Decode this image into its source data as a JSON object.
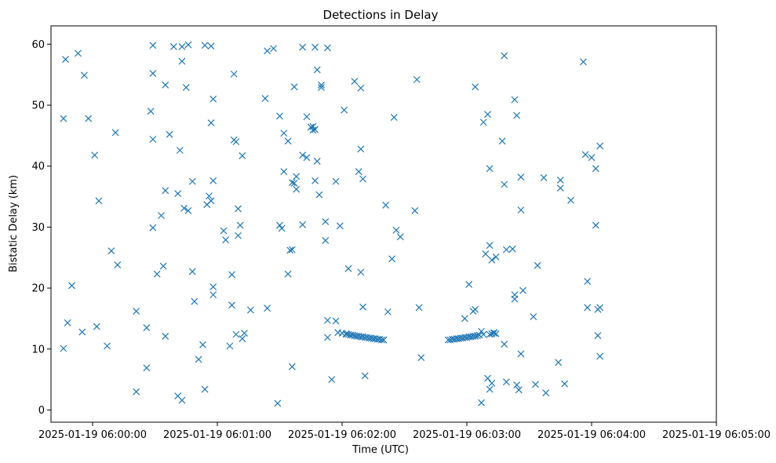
{
  "chart_data": {
    "type": "scatter",
    "title": "Detections in Delay",
    "xlabel": "Time (UTC)",
    "ylabel": "Bistatic Delay (km)",
    "marker": "x",
    "color": "#1f77b4",
    "grid": false,
    "x_is_time": true,
    "xlim": [
      "2025-01-19 05:59:40",
      "2025-01-19 06:05:00"
    ],
    "ylim": [
      -2,
      63
    ],
    "x_ticks": [
      "2025-01-19 06:00:00",
      "2025-01-19 06:01:00",
      "2025-01-19 06:02:00",
      "2025-01-19 06:03:00",
      "2025-01-19 06:04:00",
      "2025-01-19 06:05:00"
    ],
    "y_ticks": [
      0,
      10,
      20,
      30,
      40,
      50,
      60
    ],
    "series": [
      {
        "points": [
          [
            "2025-01-19 05:59:46",
            10.1
          ],
          [
            "2025-01-19 05:59:46",
            47.8
          ],
          [
            "2025-01-19 05:59:47",
            57.5
          ],
          [
            "2025-01-19 05:59:48",
            14.3
          ],
          [
            "2025-01-19 05:59:50",
            20.4
          ],
          [
            "2025-01-19 05:59:53",
            58.5
          ],
          [
            "2025-01-19 05:59:55",
            12.8
          ],
          [
            "2025-01-19 05:59:56",
            54.9
          ],
          [
            "2025-01-19 05:59:58",
            47.8
          ],
          [
            "2025-01-19 06:00:01",
            41.8
          ],
          [
            "2025-01-19 06:00:02",
            13.7
          ],
          [
            "2025-01-19 06:00:03",
            34.3
          ],
          [
            "2025-01-19 06:00:07",
            10.5
          ],
          [
            "2025-01-19 06:00:09",
            26.1
          ],
          [
            "2025-01-19 06:00:11",
            45.5
          ],
          [
            "2025-01-19 06:00:12",
            23.8
          ],
          [
            "2025-01-19 06:00:21",
            16.2
          ],
          [
            "2025-01-19 06:00:21",
            3.0
          ],
          [
            "2025-01-19 06:00:26",
            6.9
          ],
          [
            "2025-01-19 06:00:26",
            13.5
          ],
          [
            "2025-01-19 06:00:28",
            49.0
          ],
          [
            "2025-01-19 06:00:29",
            55.2
          ],
          [
            "2025-01-19 06:00:29",
            59.8
          ],
          [
            "2025-01-19 06:00:29",
            44.4
          ],
          [
            "2025-01-19 06:00:29",
            29.9
          ],
          [
            "2025-01-19 06:00:31",
            22.3
          ],
          [
            "2025-01-19 06:00:33",
            31.9
          ],
          [
            "2025-01-19 06:00:34",
            23.6
          ],
          [
            "2025-01-19 06:00:35",
            12.1
          ],
          [
            "2025-01-19 06:00:35",
            36.0
          ],
          [
            "2025-01-19 06:00:35",
            53.3
          ],
          [
            "2025-01-19 06:00:37",
            45.2
          ],
          [
            "2025-01-19 06:00:39",
            59.6
          ],
          [
            "2025-01-19 06:00:41",
            35.5
          ],
          [
            "2025-01-19 06:00:41",
            2.3
          ],
          [
            "2025-01-19 06:00:42",
            42.6
          ],
          [
            "2025-01-19 06:00:43",
            57.2
          ],
          [
            "2025-01-19 06:00:43",
            59.6
          ],
          [
            "2025-01-19 06:00:43",
            1.6
          ],
          [
            "2025-01-19 06:00:44",
            33.1
          ],
          [
            "2025-01-19 06:00:45",
            52.9
          ],
          [
            "2025-01-19 06:00:46",
            59.9
          ],
          [
            "2025-01-19 06:00:46",
            32.7
          ],
          [
            "2025-01-19 06:00:48",
            37.5
          ],
          [
            "2025-01-19 06:00:48",
            22.7
          ],
          [
            "2025-01-19 06:00:49",
            17.8
          ],
          [
            "2025-01-19 06:00:51",
            8.3
          ],
          [
            "2025-01-19 06:00:53",
            10.7
          ],
          [
            "2025-01-19 06:00:54",
            59.8
          ],
          [
            "2025-01-19 06:00:54",
            3.4
          ],
          [
            "2025-01-19 06:00:55",
            33.7
          ],
          [
            "2025-01-19 06:00:56",
            35.1
          ],
          [
            "2025-01-19 06:00:57",
            59.7
          ],
          [
            "2025-01-19 06:00:57",
            34.3
          ],
          [
            "2025-01-19 06:00:57",
            47.1
          ],
          [
            "2025-01-19 06:00:58",
            51.0
          ],
          [
            "2025-01-19 06:00:58",
            37.6
          ],
          [
            "2025-01-19 06:00:58",
            20.2
          ],
          [
            "2025-01-19 06:00:58",
            18.9
          ],
          [
            "2025-01-19 06:01:03",
            29.4
          ],
          [
            "2025-01-19 06:01:04",
            27.9
          ],
          [
            "2025-01-19 06:01:06",
            10.5
          ],
          [
            "2025-01-19 06:01:07",
            22.2
          ],
          [
            "2025-01-19 06:01:07",
            17.2
          ],
          [
            "2025-01-19 06:01:08",
            44.3
          ],
          [
            "2025-01-19 06:01:08",
            55.1
          ],
          [
            "2025-01-19 06:01:09",
            12.4
          ],
          [
            "2025-01-19 06:01:09",
            44.0
          ],
          [
            "2025-01-19 06:01:10",
            33.0
          ],
          [
            "2025-01-19 06:01:10",
            28.6
          ],
          [
            "2025-01-19 06:01:11",
            30.3
          ],
          [
            "2025-01-19 06:01:12",
            11.7
          ],
          [
            "2025-01-19 06:01:12",
            41.7
          ],
          [
            "2025-01-19 06:01:13",
            12.6
          ],
          [
            "2025-01-19 06:01:16",
            16.4
          ],
          [
            "2025-01-19 06:01:23",
            51.1
          ],
          [
            "2025-01-19 06:01:24",
            16.7
          ],
          [
            "2025-01-19 06:01:24",
            58.9
          ],
          [
            "2025-01-19 06:01:27",
            59.3
          ],
          [
            "2025-01-19 06:01:29",
            1.1
          ],
          [
            "2025-01-19 06:01:30",
            48.2
          ],
          [
            "2025-01-19 06:01:30",
            30.3
          ],
          [
            "2025-01-19 06:01:31",
            29.8
          ],
          [
            "2025-01-19 06:01:32",
            39.1
          ],
          [
            "2025-01-19 06:01:32",
            45.4
          ],
          [
            "2025-01-19 06:01:34",
            22.3
          ],
          [
            "2025-01-19 06:01:34",
            44.1
          ],
          [
            "2025-01-19 06:01:35",
            26.2
          ],
          [
            "2025-01-19 06:01:36",
            26.3
          ],
          [
            "2025-01-19 06:01:36",
            7.1
          ],
          [
            "2025-01-19 06:01:36",
            37.3
          ],
          [
            "2025-01-19 06:01:37",
            53.0
          ],
          [
            "2025-01-19 06:01:37",
            37.2
          ],
          [
            "2025-01-19 06:01:38",
            36.2
          ],
          [
            "2025-01-19 06:01:38",
            38.3
          ],
          [
            "2025-01-19 06:01:41",
            30.4
          ],
          [
            "2025-01-19 06:01:41",
            59.5
          ],
          [
            "2025-01-19 06:01:41",
            41.8
          ],
          [
            "2025-01-19 06:01:43",
            41.4
          ],
          [
            "2025-01-19 06:01:43",
            48.1
          ],
          [
            "2025-01-19 06:01:45",
            46.4
          ],
          [
            "2025-01-19 06:01:46",
            46.5
          ],
          [
            "2025-01-19 06:01:46",
            45.9
          ],
          [
            "2025-01-19 06:01:47",
            59.5
          ],
          [
            "2025-01-19 06:01:47",
            37.6
          ],
          [
            "2025-01-19 06:01:47",
            46.0
          ],
          [
            "2025-01-19 06:01:48",
            55.8
          ],
          [
            "2025-01-19 06:01:48",
            40.8
          ],
          [
            "2025-01-19 06:01:49",
            35.3
          ],
          [
            "2025-01-19 06:01:50",
            53.3
          ],
          [
            "2025-01-19 06:01:50",
            52.9
          ],
          [
            "2025-01-19 06:01:52",
            30.9
          ],
          [
            "2025-01-19 06:01:52",
            27.8
          ],
          [
            "2025-01-19 06:01:53",
            59.4
          ],
          [
            "2025-01-19 06:01:53",
            14.7
          ],
          [
            "2025-01-19 06:01:53",
            11.9
          ],
          [
            "2025-01-19 06:01:55",
            5.0
          ],
          [
            "2025-01-19 06:01:57",
            37.5
          ],
          [
            "2025-01-19 06:01:57",
            14.6
          ],
          [
            "2025-01-19 06:01:58",
            12.7
          ],
          [
            "2025-01-19 06:01:59",
            30.2
          ],
          [
            "2025-01-19 06:02:00",
            12.6
          ],
          [
            "2025-01-19 06:02:01",
            49.2
          ],
          [
            "2025-01-19 06:02:02",
            12.5
          ],
          [
            "2025-01-19 06:02:02",
            12.4
          ],
          [
            "2025-01-19 06:02:03",
            23.2
          ],
          [
            "2025-01-19 06:02:03",
            12.4
          ],
          [
            "2025-01-19 06:02:04",
            12.3
          ],
          [
            "2025-01-19 06:02:05",
            12.3
          ],
          [
            "2025-01-19 06:02:06",
            53.9
          ],
          [
            "2025-01-19 06:02:06",
            12.2
          ],
          [
            "2025-01-19 06:02:07",
            12.1
          ],
          [
            "2025-01-19 06:02:08",
            12.1
          ],
          [
            "2025-01-19 06:02:08",
            39.1
          ],
          [
            "2025-01-19 06:02:09",
            42.8
          ],
          [
            "2025-01-19 06:02:09",
            22.6
          ],
          [
            "2025-01-19 06:02:09",
            52.8
          ],
          [
            "2025-01-19 06:02:09",
            12.0
          ],
          [
            "2025-01-19 06:02:10",
            12.0
          ],
          [
            "2025-01-19 06:02:10",
            37.9
          ],
          [
            "2025-01-19 06:02:10",
            16.9
          ],
          [
            "2025-01-19 06:02:11",
            5.6
          ],
          [
            "2025-01-19 06:02:11",
            11.9
          ],
          [
            "2025-01-19 06:02:12",
            11.9
          ],
          [
            "2025-01-19 06:02:13",
            11.8
          ],
          [
            "2025-01-19 06:02:14",
            11.8
          ],
          [
            "2025-01-19 06:02:15",
            11.7
          ],
          [
            "2025-01-19 06:02:16",
            11.7
          ],
          [
            "2025-01-19 06:02:17",
            11.6
          ],
          [
            "2025-01-19 06:02:18",
            11.6
          ],
          [
            "2025-01-19 06:02:19",
            11.5
          ],
          [
            "2025-01-19 06:02:20",
            11.5
          ],
          [
            "2025-01-19 06:02:20",
            11.5
          ],
          [
            "2025-01-19 06:02:21",
            33.6
          ],
          [
            "2025-01-19 06:02:22",
            16.1
          ],
          [
            "2025-01-19 06:02:24",
            24.8
          ],
          [
            "2025-01-19 06:02:25",
            48.0
          ],
          [
            "2025-01-19 06:02:26",
            29.5
          ],
          [
            "2025-01-19 06:02:28",
            28.4
          ],
          [
            "2025-01-19 06:02:35",
            32.7
          ],
          [
            "2025-01-19 06:02:36",
            54.2
          ],
          [
            "2025-01-19 06:02:37",
            16.8
          ],
          [
            "2025-01-19 06:02:38",
            8.6
          ],
          [
            "2025-01-19 06:02:51",
            11.5
          ],
          [
            "2025-01-19 06:02:52",
            11.5
          ],
          [
            "2025-01-19 06:02:53",
            11.6
          ],
          [
            "2025-01-19 06:02:54",
            11.6
          ],
          [
            "2025-01-19 06:02:55",
            11.7
          ],
          [
            "2025-01-19 06:02:56",
            11.7
          ],
          [
            "2025-01-19 06:02:57",
            11.8
          ],
          [
            "2025-01-19 06:02:58",
            11.8
          ],
          [
            "2025-01-19 06:02:59",
            15.0
          ],
          [
            "2025-01-19 06:02:59",
            11.9
          ],
          [
            "2025-01-19 06:03:00",
            11.9
          ],
          [
            "2025-01-19 06:03:01",
            20.6
          ],
          [
            "2025-01-19 06:03:01",
            12.0
          ],
          [
            "2025-01-19 06:03:02",
            12.0
          ],
          [
            "2025-01-19 06:03:03",
            12.1
          ],
          [
            "2025-01-19 06:03:03",
            16.2
          ],
          [
            "2025-01-19 06:03:04",
            12.1
          ],
          [
            "2025-01-19 06:03:04",
            16.5
          ],
          [
            "2025-01-19 06:03:04",
            53.0
          ],
          [
            "2025-01-19 06:03:05",
            12.2
          ],
          [
            "2025-01-19 06:03:06",
            12.3
          ],
          [
            "2025-01-19 06:03:07",
            12.9
          ],
          [
            "2025-01-19 06:03:07",
            1.2
          ],
          [
            "2025-01-19 06:03:08",
            47.2
          ],
          [
            "2025-01-19 06:03:08",
            12.4
          ],
          [
            "2025-01-19 06:03:09",
            25.6
          ],
          [
            "2025-01-19 06:03:10",
            48.5
          ],
          [
            "2025-01-19 06:03:10",
            5.2
          ],
          [
            "2025-01-19 06:03:11",
            39.6
          ],
          [
            "2025-01-19 06:03:11",
            27.0
          ],
          [
            "2025-01-19 06:03:11",
            3.4
          ],
          [
            "2025-01-19 06:03:11",
            12.4
          ],
          [
            "2025-01-19 06:03:12",
            24.6
          ],
          [
            "2025-01-19 06:03:12",
            4.4
          ],
          [
            "2025-01-19 06:03:12",
            12.5
          ],
          [
            "2025-01-19 06:03:13",
            12.6
          ],
          [
            "2025-01-19 06:03:13",
            12.7
          ],
          [
            "2025-01-19 06:03:14",
            25.1
          ],
          [
            "2025-01-19 06:03:14",
            12.5
          ],
          [
            "2025-01-19 06:03:17",
            44.1
          ],
          [
            "2025-01-19 06:03:18",
            37.0
          ],
          [
            "2025-01-19 06:03:18",
            10.8
          ],
          [
            "2025-01-19 06:03:18",
            58.1
          ],
          [
            "2025-01-19 06:03:19",
            26.3
          ],
          [
            "2025-01-19 06:03:19",
            4.6
          ],
          [
            "2025-01-19 06:03:22",
            26.4
          ],
          [
            "2025-01-19 06:03:23",
            18.2
          ],
          [
            "2025-01-19 06:03:23",
            18.9
          ],
          [
            "2025-01-19 06:03:23",
            50.9
          ],
          [
            "2025-01-19 06:03:24",
            48.3
          ],
          [
            "2025-01-19 06:03:24",
            4.1
          ],
          [
            "2025-01-19 06:03:25",
            3.3
          ],
          [
            "2025-01-19 06:03:26",
            38.2
          ],
          [
            "2025-01-19 06:03:26",
            32.8
          ],
          [
            "2025-01-19 06:03:26",
            9.2
          ],
          [
            "2025-01-19 06:03:27",
            19.6
          ],
          [
            "2025-01-19 06:03:32",
            15.3
          ],
          [
            "2025-01-19 06:03:33",
            4.2
          ],
          [
            "2025-01-19 06:03:34",
            23.7
          ],
          [
            "2025-01-19 06:03:37",
            38.1
          ],
          [
            "2025-01-19 06:03:38",
            2.8
          ],
          [
            "2025-01-19 06:03:44",
            7.8
          ],
          [
            "2025-01-19 06:03:45",
            36.4
          ],
          [
            "2025-01-19 06:03:45",
            37.7
          ],
          [
            "2025-01-19 06:03:47",
            4.3
          ],
          [
            "2025-01-19 06:03:50",
            34.4
          ],
          [
            "2025-01-19 06:03:56",
            57.1
          ],
          [
            "2025-01-19 06:03:57",
            41.9
          ],
          [
            "2025-01-19 06:03:58",
            16.8
          ],
          [
            "2025-01-19 06:03:58",
            21.1
          ],
          [
            "2025-01-19 06:04:00",
            41.4
          ],
          [
            "2025-01-19 06:04:02",
            39.6
          ],
          [
            "2025-01-19 06:04:02",
            30.3
          ],
          [
            "2025-01-19 06:04:03",
            16.5
          ],
          [
            "2025-01-19 06:04:03",
            12.2
          ],
          [
            "2025-01-19 06:04:04",
            43.3
          ],
          [
            "2025-01-19 06:04:04",
            8.8
          ],
          [
            "2025-01-19 06:04:04",
            16.8
          ]
        ]
      }
    ]
  }
}
